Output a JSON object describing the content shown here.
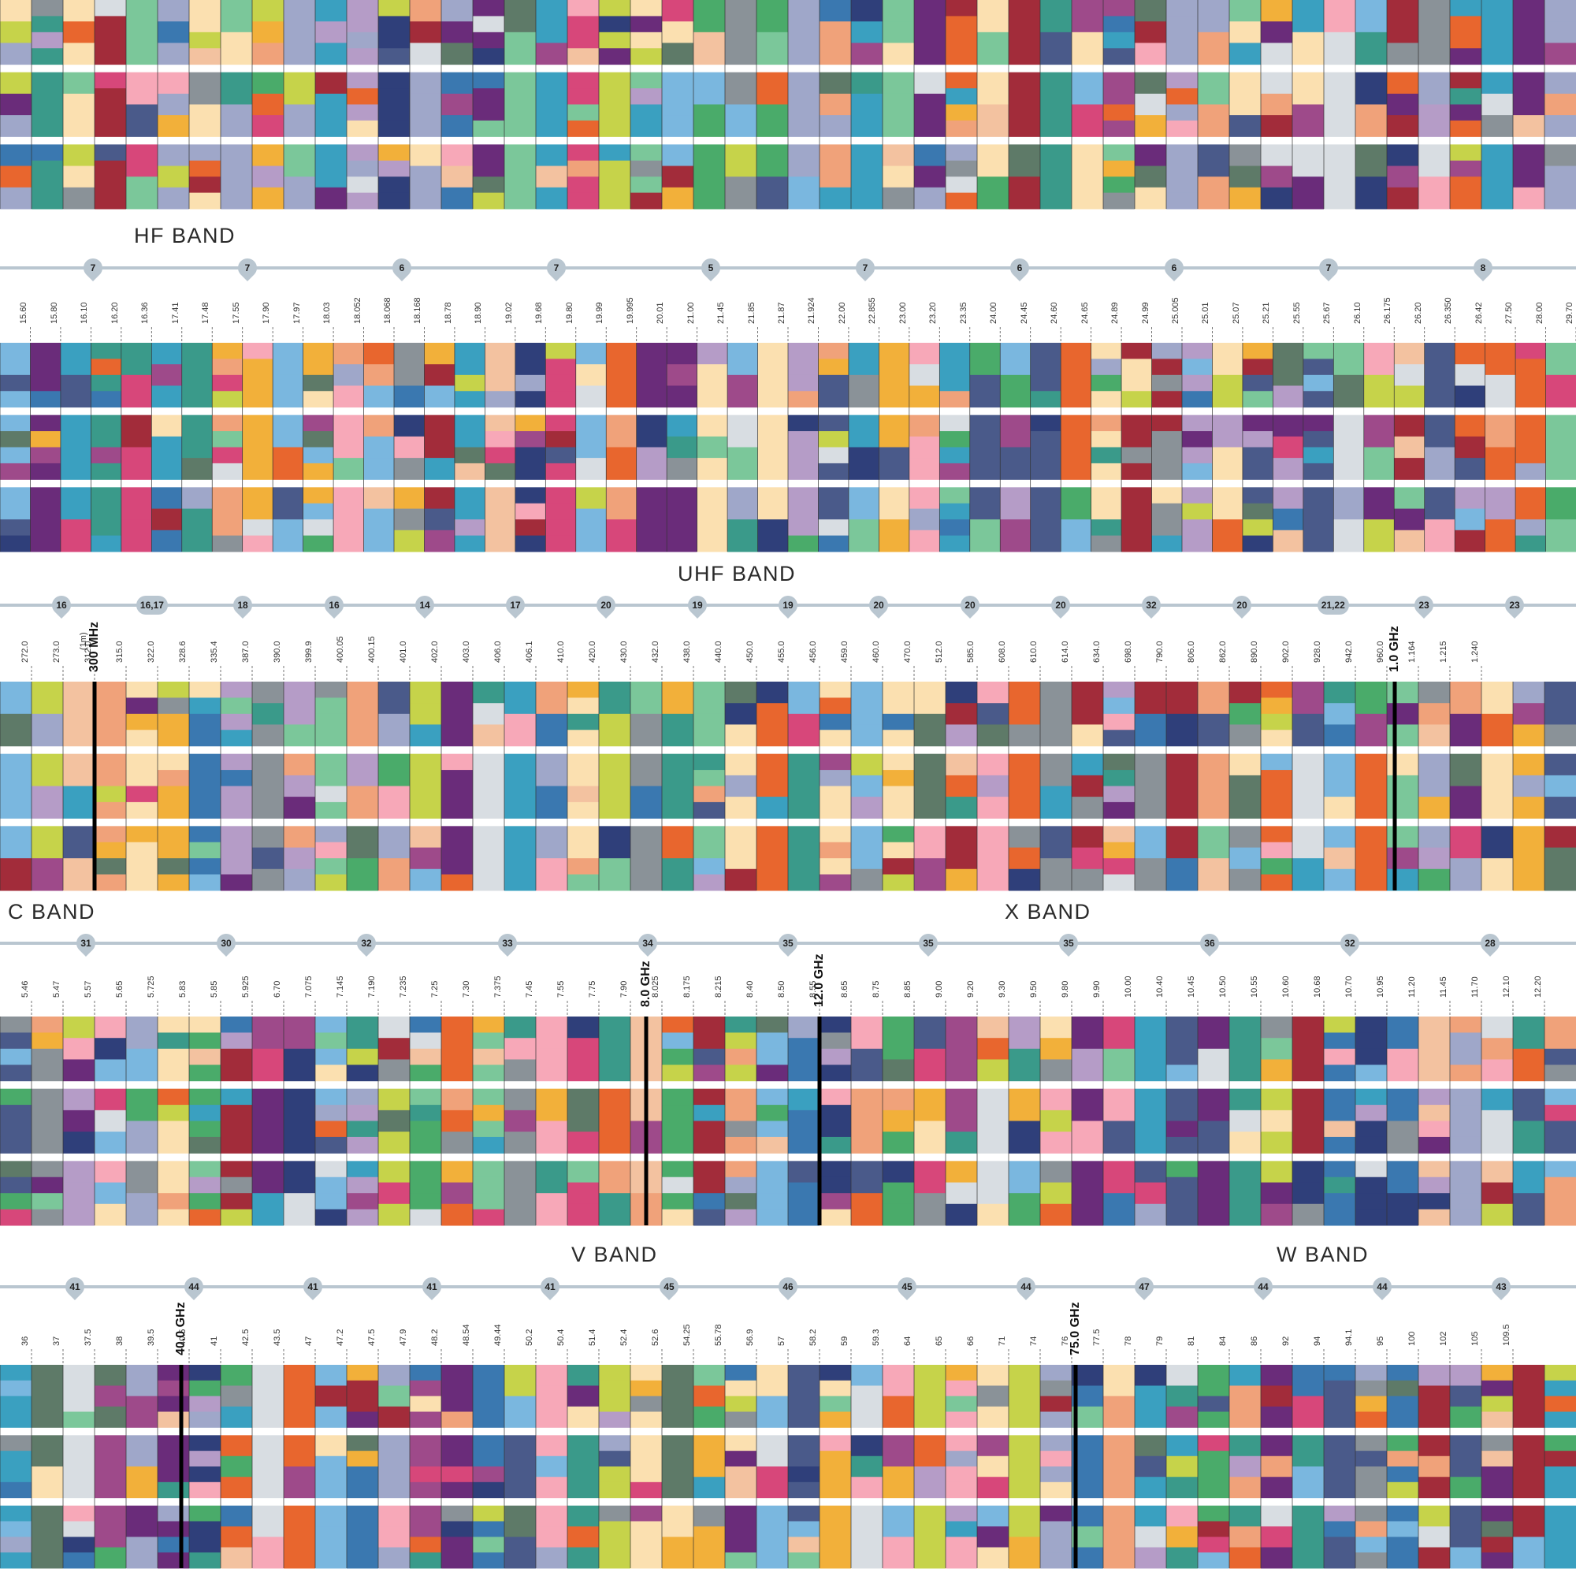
{
  "palette": [
    "#4a5a8a",
    "#7ab7df",
    "#8a9298",
    "#4aab6a",
    "#3a78b0",
    "#e8662e",
    "#d8dde2",
    "#9fa7c9",
    "#b59cc7",
    "#a22c3a",
    "#d7477a",
    "#3aa0c0",
    "#2f3f7a",
    "#f3c2a0",
    "#f7a8b8",
    "#f2b03a",
    "#c6d34a",
    "#6a2c7a",
    "#5e7a68",
    "#7bc79a",
    "#3a9a8a",
    "#9e4a8a",
    "#f0a27a",
    "#fbe0b0"
  ],
  "rows": [
    {
      "id": "row-1",
      "band": {
        "label": "",
        "x": 0
      },
      "markers": [],
      "freq_labels": [],
      "big_marks": []
    },
    {
      "id": "row-2",
      "band": {
        "label": "HF BAND"
      },
      "markers": [
        "7",
        "7",
        "6",
        "7",
        "5",
        "7",
        "6",
        "6",
        "7",
        "8"
      ],
      "freq_labels": [
        "15.60",
        "15.80",
        "16.10",
        "16.20",
        "16.36",
        "17.41",
        "17.48",
        "17.55",
        "17.90",
        "17.97",
        "18.03",
        "18.052",
        "18.068",
        "18.168",
        "18.78",
        "18.90",
        "19.02",
        "19.68",
        "19.80",
        "19.99",
        "19.995",
        "20.01",
        "21.00",
        "21.45",
        "21.85",
        "21.87",
        "21.924",
        "22.00",
        "22.855",
        "23.00",
        "23.20",
        "23.35",
        "24.00",
        "24.45",
        "24.60",
        "24.65",
        "24.89",
        "24.99",
        "25.005",
        "25.01",
        "25.07",
        "25.21",
        "25.55",
        "25.67",
        "26.10",
        "26.175",
        "26.20",
        "26.350",
        "26.42",
        "27.50",
        "28.00",
        "29.70"
      ],
      "big_marks": []
    },
    {
      "id": "row-3",
      "band": {
        "label": "UHF BAND"
      },
      "markers": [
        "16",
        "16,17",
        "18",
        "16",
        "14",
        "17",
        "20",
        "19",
        "19",
        "20",
        "20",
        "20",
        "32",
        "20",
        "21,22",
        "23",
        "23"
      ],
      "freq_labels": [
        "272.0",
        "273.0",
        "312.0",
        "315.0",
        "322.0",
        "328.6",
        "335.4",
        "387.0",
        "390.0",
        "399.9",
        "400.05",
        "400.15",
        "401.0",
        "402.0",
        "403.0",
        "406.0",
        "406.1",
        "410.0",
        "420.0",
        "430.0",
        "432.0",
        "438.0",
        "440.0",
        "450.0",
        "455.0",
        "456.0",
        "459.0",
        "460.0",
        "470.0",
        "512.0",
        "585.0",
        "608.0",
        "610.0",
        "614.0",
        "634.0",
        "698.0",
        "790.0",
        "806.0",
        "862.0",
        "890.0",
        "902.0",
        "928.0",
        "942.0",
        "960.0",
        "1.164",
        "1.215",
        "1.240"
      ],
      "big_marks": [
        "300 MHz",
        "1.0 GHz"
      ],
      "note": "(1m)"
    },
    {
      "id": "row-4",
      "band": {
        "label": "C BAND"
      },
      "band2": {
        "label": "X BAND"
      },
      "markers": [
        "31",
        "30",
        "32",
        "33",
        "34",
        "35",
        "35",
        "35",
        "36",
        "32",
        "28"
      ],
      "freq_labels": [
        "5.46",
        "5.47",
        "5.57",
        "5.65",
        "5.725",
        "5.83",
        "5.85",
        "5.925",
        "6.70",
        "7.075",
        "7.145",
        "7.190",
        "7.235",
        "7.25",
        "7.30",
        "7.375",
        "7.45",
        "7.55",
        "7.75",
        "7.90",
        "8.025",
        "8.175",
        "8.215",
        "8.40",
        "8.50",
        "8.55",
        "8.65",
        "8.75",
        "8.85",
        "9.00",
        "9.20",
        "9.30",
        "9.50",
        "9.80",
        "9.90",
        "10.00",
        "10.40",
        "10.45",
        "10.50",
        "10.55",
        "10.60",
        "10.68",
        "10.70",
        "10.95",
        "11.20",
        "11.45",
        "11.70",
        "12.10",
        "12.20"
      ],
      "big_marks": [
        "8.0 GHz",
        "12.0 GHz"
      ]
    },
    {
      "id": "row-5",
      "band": {
        "label": "V BAND"
      },
      "band2": {
        "label": "W BAND"
      },
      "markers": [
        "41",
        "44",
        "41",
        "41",
        "41",
        "45",
        "46",
        "45",
        "44",
        "47",
        "44",
        "44",
        "43"
      ],
      "freq_labels": [
        "36",
        "37",
        "37.5",
        "38",
        "39.5",
        "40.5",
        "41",
        "42.5",
        "43.5",
        "47",
        "47.2",
        "47.5",
        "47.9",
        "48.2",
        "48.54",
        "49.44",
        "50.2",
        "50.4",
        "51.4",
        "52.4",
        "52.6",
        "54.25",
        "55.78",
        "56.9",
        "57",
        "58.2",
        "59",
        "59.3",
        "64",
        "65",
        "66",
        "71",
        "74",
        "76",
        "77.5",
        "78",
        "79",
        "81",
        "84",
        "86",
        "92",
        "94",
        "94.1",
        "95",
        "100",
        "102",
        "105",
        "109.5"
      ],
      "big_marks": [
        "40.0 GHz",
        "75.0 GHz"
      ]
    }
  ]
}
